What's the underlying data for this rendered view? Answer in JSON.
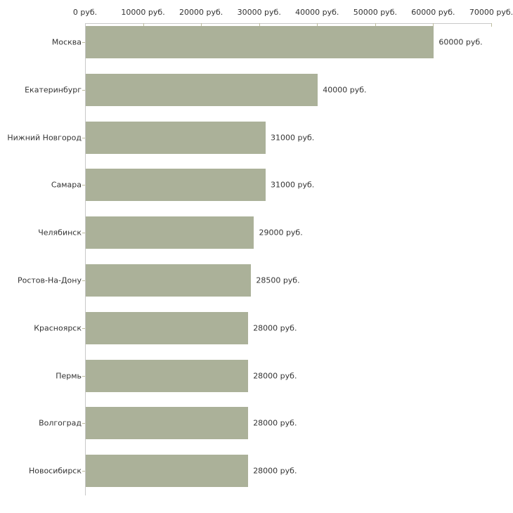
{
  "chart_data": {
    "type": "bar",
    "orientation": "horizontal",
    "title": "",
    "xlabel": "",
    "ylabel": "",
    "categories": [
      "Москва",
      "Екатеринбург",
      "Нижний Новгород",
      "Самара",
      "Челябинск",
      "Ростов-На-Дону",
      "Красноярск",
      "Пермь",
      "Волгоград",
      "Новосибирск"
    ],
    "values": [
      60000,
      40000,
      31000,
      31000,
      29000,
      28500,
      28000,
      28000,
      28000,
      28000
    ],
    "value_labels": [
      "60000 руб.",
      "40000 руб.",
      "31000 руб.",
      "31000 руб.",
      "29000 руб.",
      "28500 руб.",
      "28000 руб.",
      "28000 руб.",
      "28000 руб.",
      "28000 руб."
    ],
    "x_axis": {
      "position": "top",
      "min": 0,
      "max": 70000,
      "tick_values": [
        0,
        10000,
        20000,
        30000,
        40000,
        50000,
        60000,
        70000
      ],
      "tick_labels": [
        "0 руб.",
        "10000 руб.",
        "20000 руб.",
        "30000 руб.",
        "40000 руб.",
        "50000 руб.",
        "60000 руб.",
        "70000 руб."
      ]
    },
    "grid": false,
    "legend": false,
    "colors": {
      "bar": "#abb199",
      "axis_line": "#c9c9c9",
      "tick_mark": "#bdbc9d",
      "text": "#333333",
      "background": "#ffffff"
    }
  }
}
